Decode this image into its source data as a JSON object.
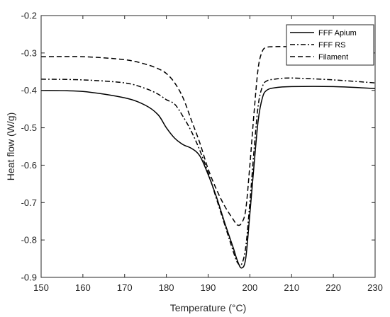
{
  "chart_data": {
    "type": "line",
    "xlabel": "Temperature (°C)",
    "ylabel": "Heat flow (W/g)",
    "xlim": [
      150,
      230
    ],
    "ylim": [
      -0.9,
      -0.2
    ],
    "xticks": [
      "150",
      "160",
      "170",
      "180",
      "190",
      "200",
      "210",
      "220",
      "230"
    ],
    "yticks": [
      "-0.2",
      "-0.3",
      "-0.4",
      "-0.5",
      "-0.6",
      "-0.7",
      "-0.8",
      "-0.9"
    ],
    "legend_position": "top-right",
    "grid": false,
    "series": [
      {
        "name": "FFF Apium",
        "style": "solid",
        "x": [
          150,
          160,
          170,
          175,
          178,
          180,
          182,
          184,
          186,
          188,
          190,
          192,
          194,
          196,
          197,
          198,
          199,
          200,
          201,
          202,
          203,
          204,
          206,
          210,
          220,
          230
        ],
        "y": [
          -0.4,
          -0.403,
          -0.42,
          -0.44,
          -0.465,
          -0.5,
          -0.528,
          -0.545,
          -0.555,
          -0.575,
          -0.625,
          -0.685,
          -0.755,
          -0.82,
          -0.855,
          -0.875,
          -0.85,
          -0.73,
          -0.6,
          -0.48,
          -0.42,
          -0.4,
          -0.393,
          -0.39,
          -0.39,
          -0.395
        ]
      },
      {
        "name": "FFF RS",
        "style": "dashdot",
        "x": [
          150,
          160,
          170,
          175,
          178,
          180,
          182,
          184,
          186,
          188,
          190,
          192,
          194,
          196,
          197,
          198,
          199,
          200,
          201,
          202,
          203,
          204,
          206,
          210,
          220,
          230
        ],
        "y": [
          -0.37,
          -0.372,
          -0.38,
          -0.395,
          -0.41,
          -0.425,
          -0.437,
          -0.47,
          -0.51,
          -0.56,
          -0.62,
          -0.69,
          -0.76,
          -0.83,
          -0.86,
          -0.865,
          -0.82,
          -0.7,
          -0.56,
          -0.44,
          -0.39,
          -0.375,
          -0.37,
          -0.367,
          -0.372,
          -0.38
        ]
      },
      {
        "name": "Filament",
        "style": "dashed",
        "x": [
          150,
          160,
          170,
          175,
          178,
          180,
          182,
          184,
          186,
          188,
          190,
          192,
          194,
          196,
          197,
          198,
          199,
          200,
          201,
          202,
          203,
          204,
          206,
          210,
          220,
          230
        ],
        "y": [
          -0.31,
          -0.31,
          -0.318,
          -0.33,
          -0.342,
          -0.355,
          -0.38,
          -0.42,
          -0.48,
          -0.54,
          -0.61,
          -0.665,
          -0.71,
          -0.745,
          -0.76,
          -0.755,
          -0.72,
          -0.6,
          -0.46,
          -0.34,
          -0.295,
          -0.285,
          -0.283,
          -0.283,
          -0.283,
          -0.283
        ]
      }
    ]
  }
}
